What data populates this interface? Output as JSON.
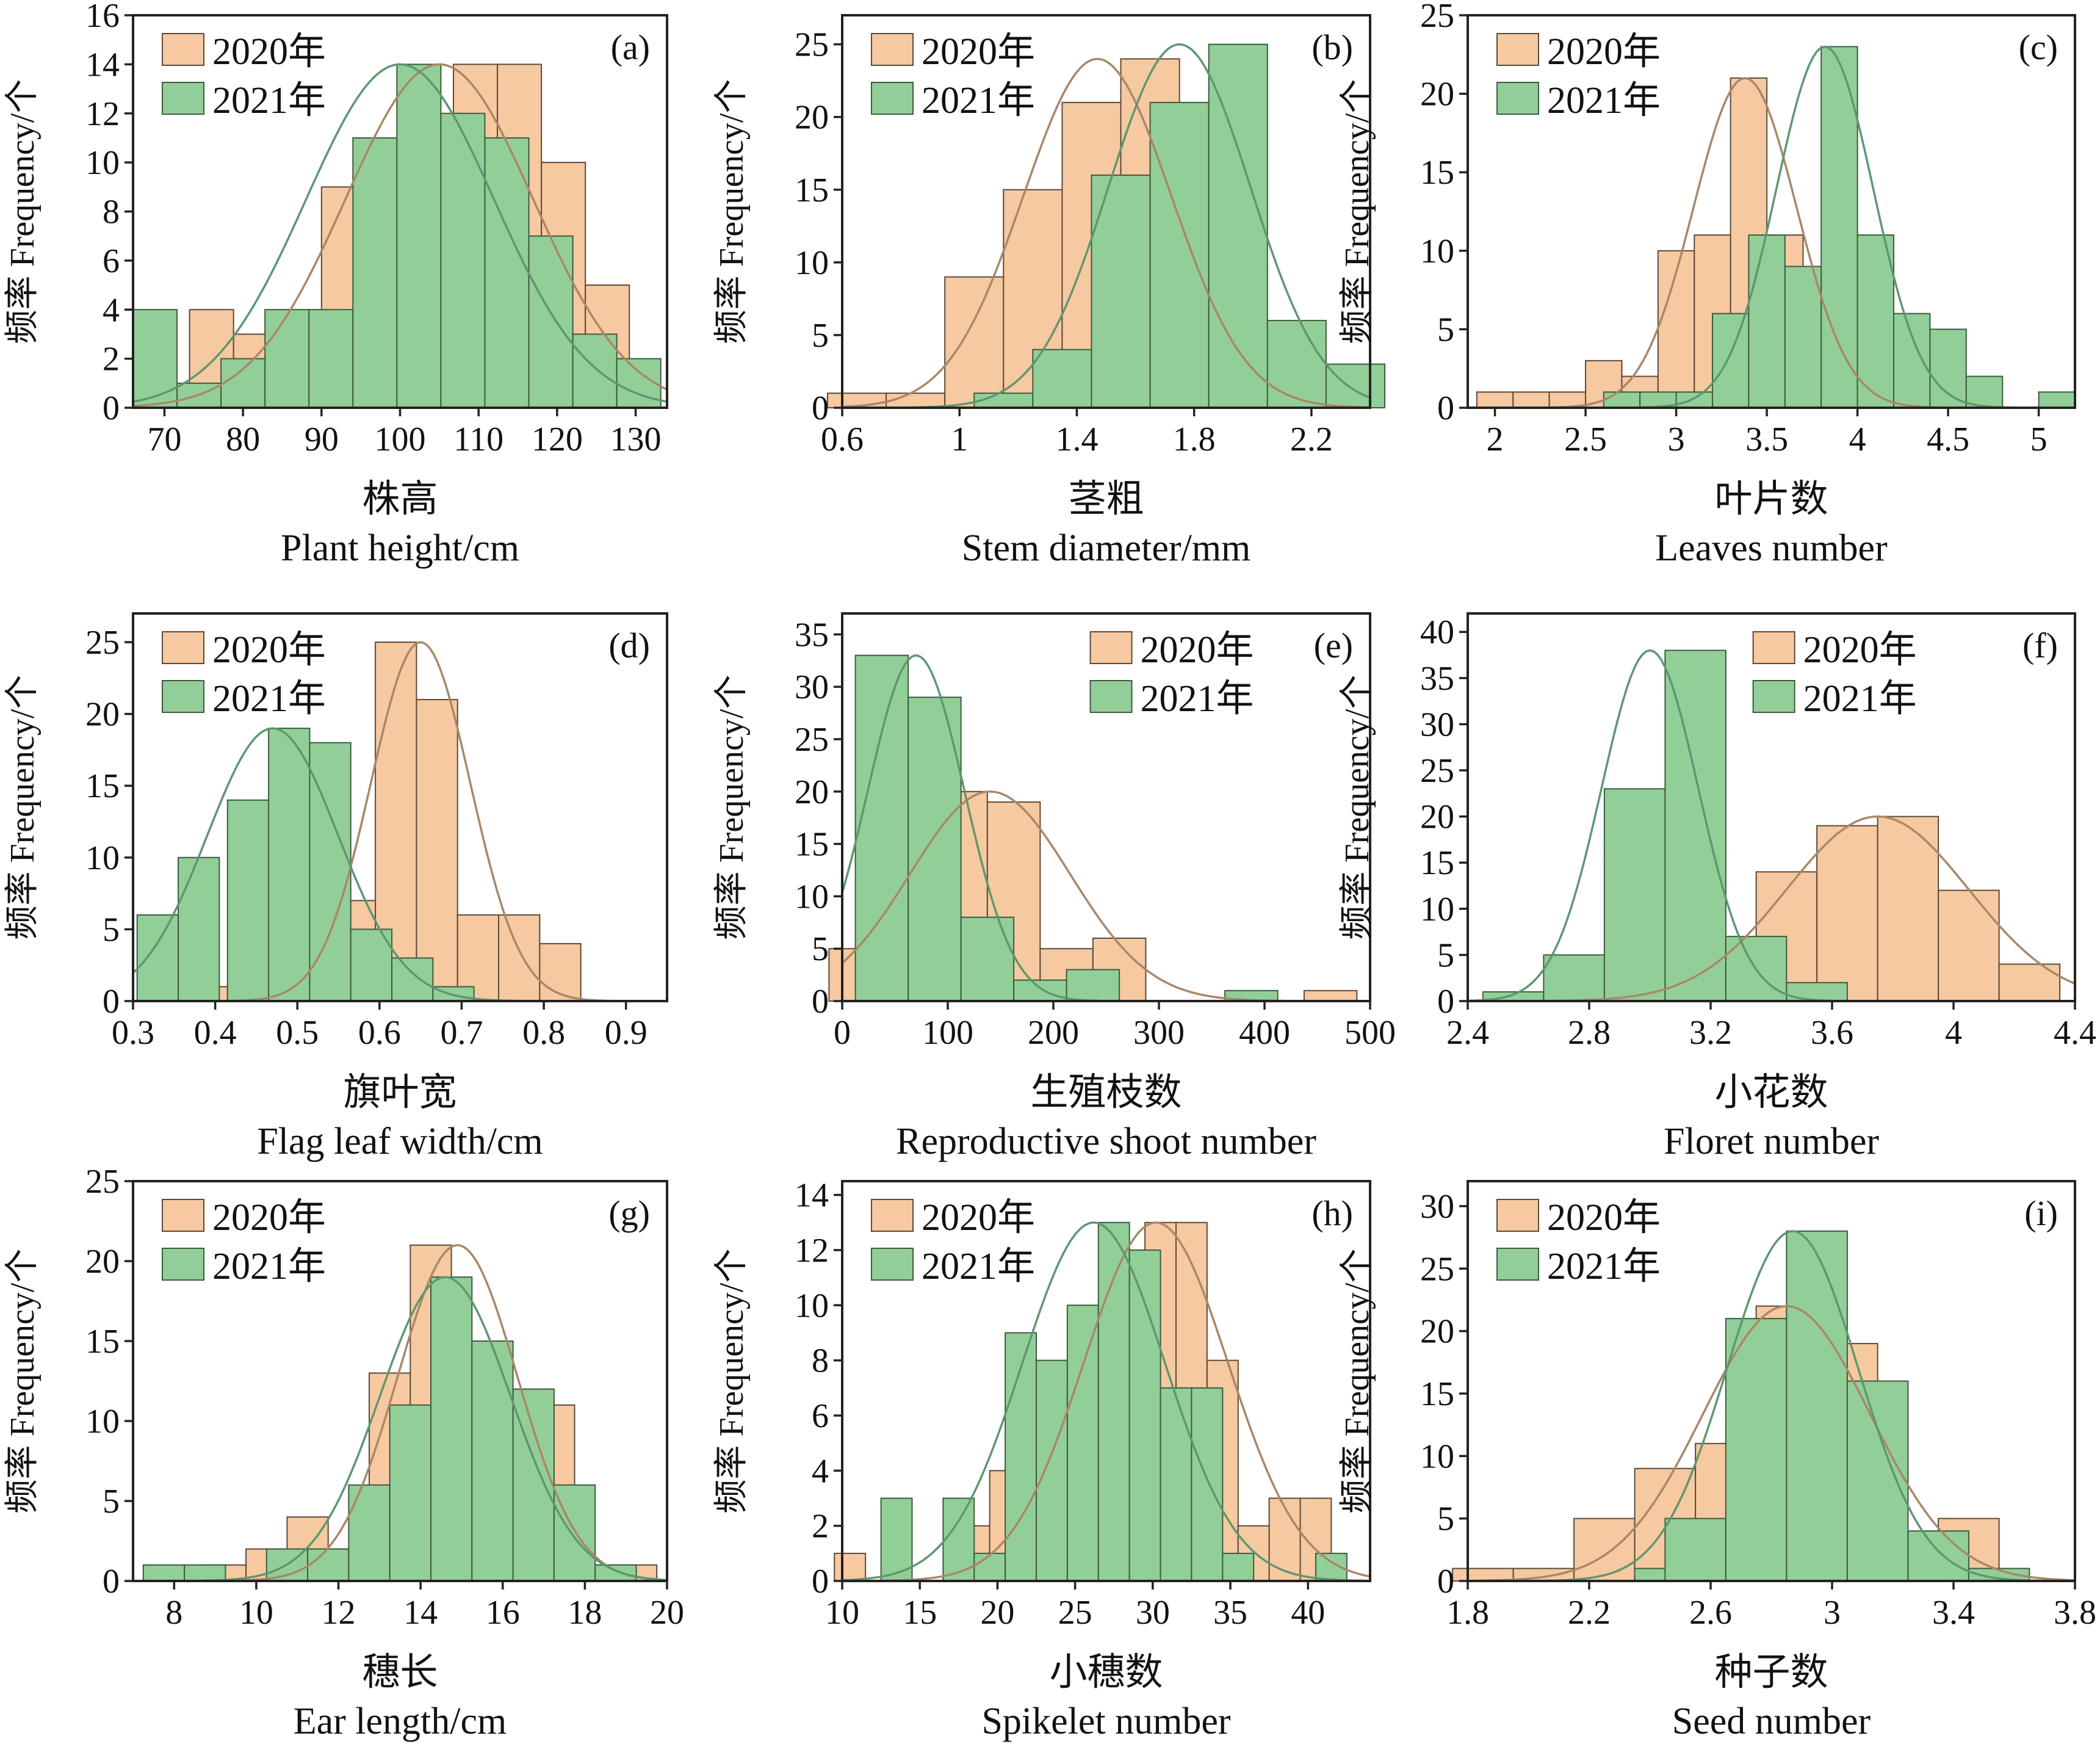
{
  "chart_data": [
    {
      "type": "bar",
      "panel": "(a)",
      "xlabel_cn": "株高",
      "xlabel_en": "Plant height/cm",
      "ylabel": "频率 Frequency/个",
      "xlim": [
        66,
        134
      ],
      "ylim": [
        0,
        16
      ],
      "xticks": [
        70,
        80,
        90,
        100,
        110,
        120,
        130
      ],
      "yticks": [
        0,
        2,
        4,
        6,
        8,
        10,
        12,
        14,
        16
      ],
      "legend_position": "top-left",
      "bin_width": 2.8,
      "series": [
        {
          "name": "2020年",
          "color": "#f7c9a0",
          "x": [
            76.0,
            81.6,
            87.2,
            92.8,
            98.4,
            104.0,
            109.6,
            115.2,
            120.8,
            126.4
          ],
          "values": [
            4,
            3,
            2,
            9,
            8,
            6,
            14,
            14,
            10,
            5
          ],
          "fit": {
            "mean": 105,
            "peak": 14
          }
        },
        {
          "name": "2021年",
          "color": "#92cf98",
          "x": [
            68.8,
            74.4,
            80.0,
            85.6,
            91.2,
            96.8,
            102.4,
            108.0,
            113.6,
            119.2,
            124.8,
            130.4
          ],
          "values": [
            4,
            1,
            2,
            4,
            4,
            11,
            14,
            12,
            11,
            7,
            3,
            2
          ],
          "fit": {
            "mean": 100,
            "peak": 14
          }
        }
      ]
    },
    {
      "type": "bar",
      "panel": "(b)",
      "xlabel_cn": "茎粗",
      "xlabel_en": "Stem diameter/mm",
      "ylabel": "频率 Frequency/个",
      "xlim": [
        0.6,
        2.4
      ],
      "ylim": [
        0,
        27
      ],
      "xticks": [
        0.6,
        1.0,
        1.4,
        1.8,
        2.2
      ],
      "yticks": [
        0,
        5,
        10,
        15,
        20,
        25
      ],
      "legend_position": "top-left",
      "bin_width": 0.1,
      "series": [
        {
          "name": "2020年",
          "color": "#f7c9a0",
          "x": [
            0.65,
            0.85,
            1.05,
            1.25,
            1.45,
            1.65,
            1.85,
            2.05
          ],
          "values": [
            1,
            1,
            9,
            15,
            21,
            24,
            4,
            1
          ],
          "fit": {
            "mean": 1.47,
            "peak": 24
          }
        },
        {
          "name": "2021年",
          "color": "#92cf98",
          "x": [
            1.15,
            1.35,
            1.55,
            1.75,
            1.95,
            2.15,
            2.35
          ],
          "values": [
            1,
            4,
            16,
            21,
            25,
            6,
            3
          ],
          "fit": {
            "mean": 1.75,
            "peak": 25
          }
        }
      ]
    },
    {
      "type": "bar",
      "panel": "(c)",
      "xlabel_cn": "叶片数",
      "xlabel_en": "Leaves number",
      "ylabel": "频率 Frequency/个",
      "xlim": [
        1.85,
        5.2
      ],
      "ylim": [
        0,
        25
      ],
      "xticks": [
        2.0,
        2.5,
        3.0,
        3.5,
        4.0,
        4.5,
        5.0
      ],
      "yticks": [
        0,
        5,
        10,
        15,
        20,
        25
      ],
      "legend_position": "top-left",
      "bin_width": 0.1,
      "series": [
        {
          "name": "2020年",
          "color": "#f7c9a0",
          "x": [
            2.0,
            2.2,
            2.4,
            2.6,
            2.8,
            3.0,
            3.2,
            3.4,
            3.6,
            3.8,
            4.0,
            4.2
          ],
          "values": [
            1,
            1,
            1,
            3,
            2,
            10,
            11,
            21,
            11,
            7,
            6,
            1
          ],
          "fit": {
            "mean": 3.38,
            "peak": 21
          }
        },
        {
          "name": "2021年",
          "color": "#92cf98",
          "x": [
            2.7,
            2.9,
            3.1,
            3.3,
            3.5,
            3.7,
            3.9,
            4.1,
            4.3,
            4.5,
            4.7,
            5.1
          ],
          "values": [
            1,
            1,
            1,
            6,
            11,
            9,
            23,
            11,
            6,
            5,
            2,
            1
          ],
          "fit": {
            "mean": 3.82,
            "peak": 23
          }
        }
      ]
    },
    {
      "type": "bar",
      "panel": "(d)",
      "xlabel_cn": "旗叶宽",
      "xlabel_en": "Flag leaf width/cm",
      "ylabel": "频率 Frequency/个",
      "xlim": [
        0.3,
        0.95
      ],
      "ylim": [
        0,
        27
      ],
      "xticks": [
        0.3,
        0.4,
        0.5,
        0.6,
        0.7,
        0.8,
        0.9
      ],
      "yticks": [
        0,
        5,
        10,
        15,
        20,
        25
      ],
      "legend_position": "top-left",
      "bin_width": 0.025,
      "series": [
        {
          "name": "2020年",
          "color": "#f7c9a0",
          "x": [
            0.39,
            0.46,
            0.52,
            0.57,
            0.62,
            0.67,
            0.72,
            0.77,
            0.82
          ],
          "values": [
            1,
            2,
            4,
            7,
            25,
            21,
            6,
            6,
            4
          ],
          "fit": {
            "mean": 0.65,
            "peak": 25
          }
        },
        {
          "name": "2021年",
          "color": "#92cf98",
          "x": [
            0.33,
            0.38,
            0.44,
            0.49,
            0.54,
            0.59,
            0.64,
            0.69
          ],
          "values": [
            6,
            10,
            14,
            19,
            18,
            5,
            3,
            1
          ],
          "fit": {
            "mean": 0.47,
            "peak": 19
          }
        }
      ]
    },
    {
      "type": "bar",
      "panel": "(e)",
      "xlabel_cn": "生殖枝数",
      "xlabel_en": "Reproductive shoot number",
      "ylabel": "频率 Frequency/个",
      "xlim": [
        0,
        500
      ],
      "ylim": [
        0,
        37
      ],
      "xticks": [
        0,
        100,
        200,
        300,
        400,
        500
      ],
      "yticks": [
        0,
        5,
        10,
        15,
        20,
        25,
        30,
        35
      ],
      "legend_position": "top-right",
      "bin_width": 25,
      "series": [
        {
          "name": "2020年",
          "color": "#f7c9a0",
          "x": [
            12.5,
            62.5,
            112.5,
            162.5,
            212.5,
            262.5,
            462.5
          ],
          "values": [
            5,
            20,
            20,
            19,
            5,
            6,
            1
          ],
          "fit": {
            "mean": 140,
            "peak": 20
          }
        },
        {
          "name": "2021年",
          "color": "#92cf98",
          "x": [
            37.5,
            87.5,
            137.5,
            187.5,
            237.5,
            387.5
          ],
          "values": [
            33,
            29,
            8,
            2,
            3,
            1
          ],
          "fit": {
            "mean": 70,
            "peak": 33
          }
        }
      ]
    },
    {
      "type": "bar",
      "panel": "(f)",
      "xlabel_cn": "小花数",
      "xlabel_en": "Floret number",
      "ylabel": "频率 Frequency/个",
      "xlim": [
        2.4,
        4.4
      ],
      "ylim": [
        0,
        42
      ],
      "xticks": [
        2.4,
        2.8,
        3.2,
        3.6,
        4.0,
        4.4
      ],
      "yticks": [
        0,
        5,
        10,
        15,
        20,
        25,
        30,
        35,
        40
      ],
      "legend_position": "top-right",
      "bin_width": 0.1,
      "series": [
        {
          "name": "2020年",
          "color": "#f7c9a0",
          "x": [
            3.05,
            3.25,
            3.45,
            3.65,
            3.85,
            4.05,
            4.25
          ],
          "values": [
            1,
            5,
            14,
            19,
            20,
            12,
            4
          ],
          "fit": {
            "mean": 3.75,
            "peak": 20
          }
        },
        {
          "name": "2021年",
          "color": "#92cf98",
          "x": [
            2.55,
            2.75,
            2.95,
            3.15,
            3.35,
            3.55
          ],
          "values": [
            1,
            5,
            23,
            38,
            7,
            2
          ],
          "fit": {
            "mean": 3.0,
            "peak": 38
          }
        }
      ]
    },
    {
      "type": "bar",
      "panel": "(g)",
      "xlabel_cn": "穗长",
      "xlabel_en": "Ear length/cm",
      "ylabel": "频率 Frequency/个",
      "xlim": [
        7,
        20
      ],
      "ylim": [
        0,
        25
      ],
      "xticks": [
        8,
        10,
        12,
        14,
        16,
        18,
        20
      ],
      "yticks": [
        0,
        5,
        10,
        15,
        20,
        25
      ],
      "legend_position": "top-left",
      "bin_width": 0.5,
      "series": [
        {
          "name": "2020年",
          "color": "#f7c9a0",
          "x": [
            9.25,
            10.25,
            11.25,
            12.25,
            13.25,
            14.25,
            15.25,
            16.25,
            17.25,
            18.25,
            19.25
          ],
          "values": [
            1,
            2,
            4,
            2,
            13,
            21,
            14,
            7,
            11,
            1,
            1
          ],
          "fit": {
            "mean": 14.9,
            "peak": 21
          }
        },
        {
          "name": "2021年",
          "color": "#92cf98",
          "x": [
            7.75,
            8.75,
            10.75,
            11.75,
            12.75,
            13.75,
            14.75,
            15.75,
            16.75,
            17.75,
            18.75
          ],
          "values": [
            1,
            1,
            2,
            2,
            6,
            11,
            19,
            15,
            12,
            6,
            1
          ],
          "fit": {
            "mean": 14.6,
            "peak": 19
          }
        }
      ]
    },
    {
      "type": "bar",
      "panel": "(h)",
      "xlabel_cn": "小穗数",
      "xlabel_en": "Spikelet number",
      "ylabel": "频率 Frequency/个",
      "xlim": [
        10,
        44
      ],
      "ylim": [
        0,
        14.5
      ],
      "xticks": [
        10,
        15,
        20,
        25,
        30,
        35,
        40
      ],
      "yticks": [
        0,
        2,
        4,
        6,
        8,
        10,
        12,
        14
      ],
      "legend_position": "top-left",
      "bin_width": 1,
      "series": [
        {
          "name": "2020年",
          "color": "#f7c9a0",
          "x": [
            10.5,
            18.5,
            20.5,
            22.5,
            24.5,
            26.5,
            28.5,
            30.5,
            32.5,
            34.5,
            36.5,
            38.5,
            40.5
          ],
          "values": [
            1,
            2,
            4,
            4,
            4,
            7,
            12,
            13,
            13,
            8,
            2,
            3,
            3
          ],
          "fit": {
            "mean": 30.2,
            "peak": 13
          }
        },
        {
          "name": "2021年",
          "color": "#92cf98",
          "x": [
            13.5,
            17.5,
            19.5,
            21.5,
            23.5,
            25.5,
            27.5,
            29.5,
            31.5,
            33.5,
            35.5,
            41.5
          ],
          "values": [
            3,
            3,
            1,
            9,
            8,
            10,
            13,
            12,
            7,
            7,
            1,
            1
          ],
          "fit": {
            "mean": 26.2,
            "peak": 13
          }
        }
      ]
    },
    {
      "type": "bar",
      "panel": "(i)",
      "xlabel_cn": "种子数",
      "xlabel_en": "Seed number",
      "ylabel": "频率 Frequency/个",
      "xlim": [
        1.8,
        3.8
      ],
      "ylim": [
        0,
        32
      ],
      "xticks": [
        1.8,
        2.2,
        2.6,
        3.0,
        3.4,
        3.8
      ],
      "yticks": [
        0,
        5,
        10,
        15,
        20,
        25,
        30
      ],
      "legend_position": "top-left",
      "bin_width": 0.1,
      "series": [
        {
          "name": "2020年",
          "color": "#f7c9a0",
          "x": [
            1.85,
            2.05,
            2.25,
            2.45,
            2.65,
            2.85,
            3.05,
            3.25,
            3.45
          ],
          "values": [
            1,
            1,
            5,
            9,
            11,
            22,
            19,
            3,
            5
          ],
          "fit": {
            "mean": 2.85,
            "peak": 22
          }
        },
        {
          "name": "2021年",
          "color": "#92cf98",
          "x": [
            2.45,
            2.55,
            2.75,
            2.95,
            3.15,
            3.35,
            3.55
          ],
          "values": [
            1,
            5,
            21,
            28,
            16,
            4,
            1
          ],
          "fit": {
            "mean": 2.87,
            "peak": 28
          }
        }
      ]
    }
  ]
}
